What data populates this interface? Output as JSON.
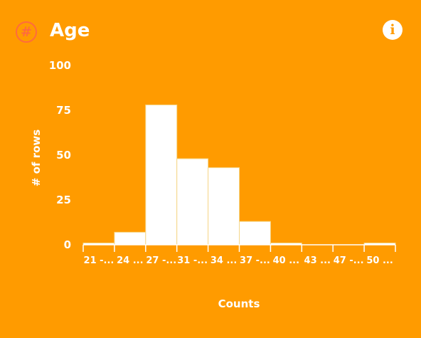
{
  "header": {
    "title": "Age",
    "type_icon": "hash-icon",
    "info_icon": "info-icon"
  },
  "colors": {
    "background": "#FF9B00",
    "bar_fill": "#FFFFFF",
    "bar_stroke": "#F5D78A",
    "type_icon": "#FF6B3D"
  },
  "chart_data": {
    "type": "bar",
    "categories": [
      "21 -...",
      "24 ...",
      "27 -...",
      "31 -...",
      "34 ...",
      "37 -...",
      "40 ...",
      "43 ...",
      "47 -...",
      "50 ..."
    ],
    "values": [
      1,
      7,
      78,
      48,
      43,
      13,
      1,
      0,
      0,
      1
    ],
    "xlabel": "Counts",
    "ylabel": "# of rows",
    "ylim": [
      0,
      100
    ],
    "yticks": [
      0,
      25,
      50,
      75,
      100
    ],
    "grid": false,
    "legend": "none"
  }
}
